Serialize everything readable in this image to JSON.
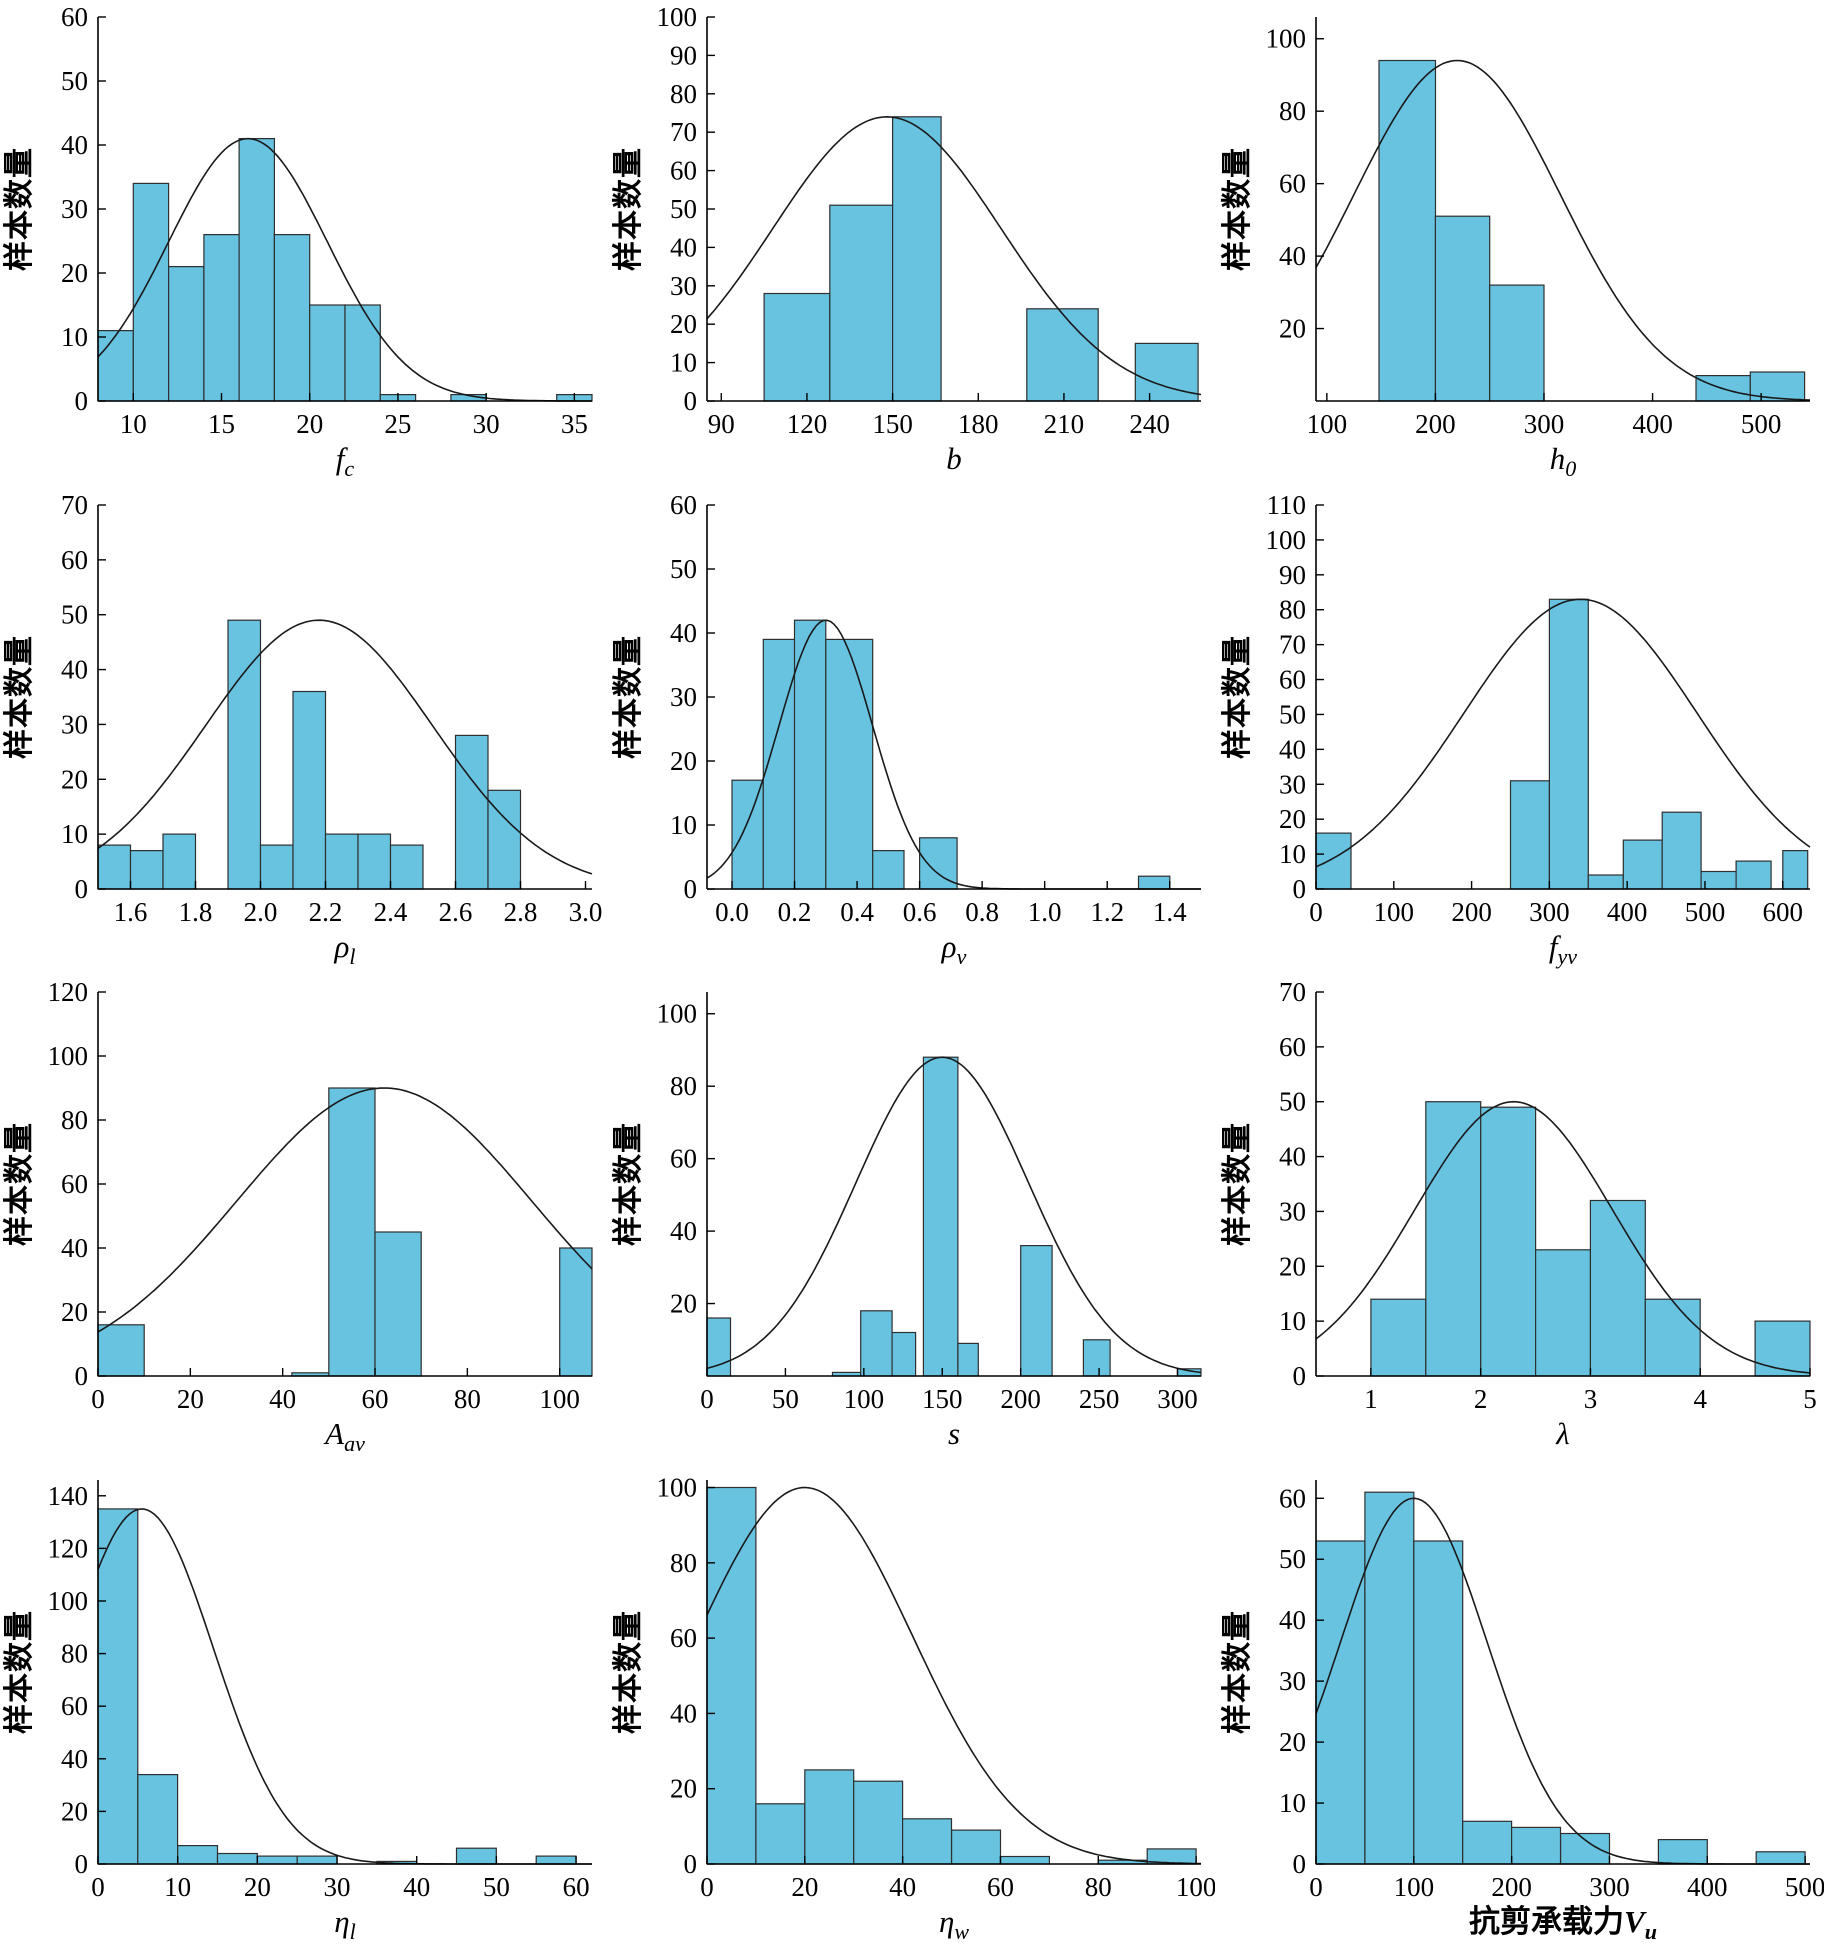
{
  "page": {
    "background": "#ffffff",
    "layout": "3x4-histogram-grid"
  },
  "style": {
    "bar_fill": "#67c3e0",
    "bar_stroke": "#2f2f2f",
    "curve_color": "#1a1a1a",
    "axis_color": "#000000"
  },
  "chart_data": [
    {
      "name": "fc",
      "type": "bar",
      "subtype": "histogram-with-normal-fit",
      "ylabel": "样本数量",
      "xlabel": {
        "prefix": "",
        "base": "f",
        "sub": "c",
        "bold": false
      },
      "xlim": [
        8,
        36
      ],
      "ylim": [
        0,
        60
      ],
      "x_ticks": {
        "values": [
          10,
          15,
          20,
          25,
          30,
          35
        ],
        "labels": [
          "10",
          "15",
          "20",
          "25",
          "30",
          "35"
        ]
      },
      "y_ticks": {
        "values": [
          0,
          10,
          20,
          30,
          40,
          50,
          60
        ],
        "labels": [
          "0",
          "10",
          "20",
          "30",
          "40",
          "50",
          "60"
        ]
      },
      "bars": [
        [
          8,
          10,
          11
        ],
        [
          10,
          12,
          34
        ],
        [
          12,
          14,
          21
        ],
        [
          14,
          16,
          26
        ],
        [
          16,
          18,
          41
        ],
        [
          18,
          20,
          26
        ],
        [
          20,
          22,
          15
        ],
        [
          22,
          24,
          15
        ],
        [
          24,
          26,
          1
        ],
        [
          28,
          30,
          1
        ],
        [
          34,
          36,
          1
        ]
      ],
      "curve": {
        "mean": 16.5,
        "sigma": 4.5,
        "amp": 41
      }
    },
    {
      "name": "b",
      "type": "bar",
      "subtype": "histogram-with-normal-fit",
      "ylabel": "样本数量",
      "xlabel": {
        "prefix": "",
        "base": "b",
        "sub": "",
        "bold": false
      },
      "xlim": [
        85,
        258
      ],
      "ylim": [
        0,
        100
      ],
      "x_ticks": {
        "values": [
          90,
          120,
          150,
          180,
          210,
          240
        ],
        "labels": [
          "90",
          "120",
          "150",
          "180",
          "210",
          "240"
        ]
      },
      "y_ticks": {
        "values": [
          0,
          10,
          20,
          30,
          40,
          50,
          60,
          70,
          80,
          90,
          100
        ],
        "labels": [
          "0",
          "10",
          "20",
          "30",
          "40",
          "50",
          "60",
          "70",
          "80",
          "90",
          "100"
        ]
      },
      "bars": [
        [
          105,
          128,
          28
        ],
        [
          128,
          150,
          51
        ],
        [
          150,
          167,
          74
        ],
        [
          197,
          222,
          24
        ],
        [
          235,
          257,
          15
        ]
      ],
      "curve": {
        "mean": 148,
        "sigma": 40,
        "amp": 74
      }
    },
    {
      "name": "h0",
      "type": "bar",
      "subtype": "histogram-with-normal-fit",
      "ylabel": "样本数量",
      "xlabel": {
        "prefix": "",
        "base": "h",
        "sub": "0",
        "bold": false
      },
      "xlim": [
        90,
        545
      ],
      "ylim": [
        0,
        106
      ],
      "x_ticks": {
        "values": [
          100,
          200,
          300,
          400,
          500
        ],
        "labels": [
          "100",
          "200",
          "300",
          "400",
          "500"
        ]
      },
      "y_ticks": {
        "values": [
          20,
          40,
          60,
          80,
          100
        ],
        "labels": [
          "20",
          "40",
          "60",
          "80",
          "100"
        ]
      },
      "bars": [
        [
          148,
          200,
          94
        ],
        [
          200,
          250,
          51
        ],
        [
          250,
          300,
          32
        ],
        [
          440,
          490,
          7
        ],
        [
          490,
          540,
          8
        ]
      ],
      "curve": {
        "mean": 220,
        "sigma": 95,
        "amp": 94
      }
    },
    {
      "name": "rho-l",
      "type": "bar",
      "subtype": "histogram-with-normal-fit",
      "ylabel": "样本数量",
      "xlabel": {
        "prefix": "",
        "base": "ρ",
        "sub": "l",
        "bold": false
      },
      "xlim": [
        1.5,
        3.02
      ],
      "ylim": [
        0,
        70
      ],
      "x_ticks": {
        "values": [
          1.6,
          1.8,
          2.0,
          2.2,
          2.4,
          2.6,
          2.8,
          3.0
        ],
        "labels": [
          "1.6",
          "1.8",
          "2.0",
          "2.2",
          "2.4",
          "2.6",
          "2.8",
          "3.0"
        ]
      },
      "y_ticks": {
        "values": [
          0,
          10,
          20,
          30,
          40,
          50,
          60,
          70
        ],
        "labels": [
          "0",
          "10",
          "20",
          "30",
          "40",
          "50",
          "60",
          "70"
        ]
      },
      "bars": [
        [
          1.5,
          1.6,
          8
        ],
        [
          1.6,
          1.7,
          7
        ],
        [
          1.7,
          1.8,
          10
        ],
        [
          1.9,
          2.0,
          49
        ],
        [
          2.0,
          2.1,
          8
        ],
        [
          2.1,
          2.2,
          36
        ],
        [
          2.2,
          2.3,
          10
        ],
        [
          2.3,
          2.4,
          10
        ],
        [
          2.4,
          2.5,
          8
        ],
        [
          2.6,
          2.7,
          28
        ],
        [
          2.7,
          2.8,
          18
        ]
      ],
      "curve": {
        "mean": 2.18,
        "sigma": 0.35,
        "amp": 49
      }
    },
    {
      "name": "rho-v",
      "type": "bar",
      "subtype": "histogram-with-normal-fit",
      "ylabel": "样本数量",
      "xlabel": {
        "prefix": "",
        "base": "ρ",
        "sub": "v",
        "bold": false
      },
      "xlim": [
        -0.08,
        1.5
      ],
      "ylim": [
        0,
        60
      ],
      "x_ticks": {
        "values": [
          0.0,
          0.2,
          0.4,
          0.6,
          0.8,
          1.0,
          1.2,
          1.4
        ],
        "labels": [
          "0.0",
          "0.2",
          "0.4",
          "0.6",
          "0.8",
          "1.0",
          "1.2",
          "1.4"
        ]
      },
      "y_ticks": {
        "values": [
          0,
          10,
          20,
          30,
          40,
          50,
          60
        ],
        "labels": [
          "0",
          "10",
          "20",
          "30",
          "40",
          "50",
          "60"
        ]
      },
      "bars": [
        [
          0.0,
          0.1,
          17
        ],
        [
          0.1,
          0.2,
          39
        ],
        [
          0.2,
          0.3,
          42
        ],
        [
          0.3,
          0.45,
          39
        ],
        [
          0.45,
          0.55,
          6
        ],
        [
          0.6,
          0.72,
          8
        ],
        [
          1.3,
          1.4,
          2
        ]
      ],
      "curve": {
        "mean": 0.3,
        "sigma": 0.15,
        "amp": 42
      }
    },
    {
      "name": "fyv",
      "type": "bar",
      "subtype": "histogram-with-normal-fit",
      "ylabel": "样本数量",
      "xlabel": {
        "prefix": "",
        "base": "f",
        "sub": "yv",
        "bold": false
      },
      "xlim": [
        0,
        635
      ],
      "ylim": [
        0,
        110
      ],
      "x_ticks": {
        "values": [
          0,
          100,
          200,
          300,
          400,
          500,
          600
        ],
        "labels": [
          "0",
          "100",
          "200",
          "300",
          "400",
          "500",
          "600"
        ]
      },
      "y_ticks": {
        "values": [
          0,
          10,
          20,
          30,
          40,
          50,
          60,
          70,
          80,
          90,
          100,
          110
        ],
        "labels": [
          "0",
          "10",
          "20",
          "30",
          "40",
          "50",
          "60",
          "70",
          "80",
          "90",
          "100",
          "110"
        ]
      },
      "bars": [
        [
          0,
          45,
          16
        ],
        [
          250,
          300,
          31
        ],
        [
          300,
          350,
          83
        ],
        [
          350,
          395,
          4
        ],
        [
          395,
          445,
          14
        ],
        [
          445,
          495,
          22
        ],
        [
          495,
          540,
          5
        ],
        [
          540,
          585,
          8
        ],
        [
          600,
          632,
          11
        ]
      ],
      "curve": {
        "mean": 340,
        "sigma": 150,
        "amp": 83
      }
    },
    {
      "name": "aav",
      "type": "bar",
      "subtype": "histogram-with-normal-fit",
      "ylabel": "样本数量",
      "xlabel": {
        "prefix": "",
        "base": "A",
        "sub": "av",
        "bold": false
      },
      "xlim": [
        0,
        107
      ],
      "ylim": [
        0,
        120
      ],
      "x_ticks": {
        "values": [
          0,
          20,
          40,
          60,
          80,
          100
        ],
        "labels": [
          "0",
          "20",
          "40",
          "60",
          "80",
          "100"
        ]
      },
      "y_ticks": {
        "values": [
          0,
          20,
          40,
          60,
          80,
          100,
          120
        ],
        "labels": [
          "0",
          "20",
          "40",
          "60",
          "80",
          "100",
          "120"
        ]
      },
      "bars": [
        [
          0,
          10,
          16
        ],
        [
          42,
          50,
          1
        ],
        [
          50,
          60,
          90
        ],
        [
          60,
          70,
          45
        ],
        [
          100,
          107,
          40
        ]
      ],
      "curve": {
        "mean": 62,
        "sigma": 32,
        "amp": 90
      }
    },
    {
      "name": "s",
      "type": "bar",
      "subtype": "histogram-with-normal-fit",
      "ylabel": "样本数量",
      "xlabel": {
        "prefix": "",
        "base": "s",
        "sub": "",
        "bold": false
      },
      "xlim": [
        0,
        315
      ],
      "ylim": [
        0,
        106
      ],
      "x_ticks": {
        "values": [
          0,
          50,
          100,
          150,
          200,
          250,
          300
        ],
        "labels": [
          "0",
          "50",
          "100",
          "150",
          "200",
          "250",
          "300"
        ]
      },
      "y_ticks": {
        "values": [
          20,
          40,
          60,
          80,
          100
        ],
        "labels": [
          "20",
          "40",
          "60",
          "80",
          "100"
        ]
      },
      "bars": [
        [
          0,
          15,
          16
        ],
        [
          80,
          98,
          1
        ],
        [
          98,
          118,
          18
        ],
        [
          118,
          133,
          12
        ],
        [
          138,
          160,
          88
        ],
        [
          160,
          173,
          9
        ],
        [
          200,
          220,
          36
        ],
        [
          240,
          257,
          10
        ],
        [
          300,
          315,
          2
        ]
      ],
      "curve": {
        "mean": 150,
        "sigma": 55,
        "amp": 88
      }
    },
    {
      "name": "lambda",
      "type": "bar",
      "subtype": "histogram-with-normal-fit",
      "ylabel": "样本数量",
      "xlabel": {
        "prefix": "",
        "base": "λ",
        "sub": "",
        "bold": false
      },
      "xlim": [
        0.5,
        5
      ],
      "ylim": [
        0,
        70
      ],
      "x_ticks": {
        "values": [
          1,
          2,
          3,
          4,
          5
        ],
        "labels": [
          "1",
          "2",
          "3",
          "4",
          "5"
        ]
      },
      "y_ticks": {
        "values": [
          0,
          10,
          20,
          30,
          40,
          50,
          60,
          70
        ],
        "labels": [
          "0",
          "10",
          "20",
          "30",
          "40",
          "50",
          "60",
          "70"
        ]
      },
      "bars": [
        [
          1,
          1.5,
          14
        ],
        [
          1.5,
          2,
          50
        ],
        [
          2,
          2.5,
          49
        ],
        [
          2.5,
          3,
          23
        ],
        [
          3,
          3.5,
          32
        ],
        [
          3.5,
          4,
          14
        ],
        [
          4.5,
          5,
          10
        ]
      ],
      "curve": {
        "mean": 2.3,
        "sigma": 0.9,
        "amp": 50
      }
    },
    {
      "name": "eta-l",
      "type": "bar",
      "subtype": "histogram-with-normal-fit",
      "ylabel": "样本数量",
      "xlabel": {
        "prefix": "",
        "base": "η",
        "sub": "l",
        "bold": false
      },
      "xlim": [
        0,
        62
      ],
      "ylim": [
        0,
        146
      ],
      "x_ticks": {
        "values": [
          0,
          10,
          20,
          30,
          40,
          50,
          60
        ],
        "labels": [
          "0",
          "10",
          "20",
          "30",
          "40",
          "50",
          "60"
        ]
      },
      "y_ticks": {
        "values": [
          0,
          20,
          40,
          60,
          80,
          100,
          120,
          140
        ],
        "labels": [
          "0",
          "20",
          "40",
          "60",
          "80",
          "100",
          "120",
          "140"
        ]
      },
      "bars": [
        [
          0,
          5,
          135
        ],
        [
          5,
          10,
          34
        ],
        [
          10,
          15,
          7
        ],
        [
          15,
          20,
          4
        ],
        [
          20,
          25,
          3
        ],
        [
          25,
          30,
          3
        ],
        [
          35,
          40,
          1
        ],
        [
          45,
          50,
          6
        ],
        [
          55,
          60,
          3
        ]
      ],
      "curve": {
        "mean": 5.5,
        "sigma": 9,
        "amp": 135
      }
    },
    {
      "name": "eta-w",
      "type": "bar",
      "subtype": "histogram-with-normal-fit",
      "ylabel": "样本数量",
      "xlabel": {
        "prefix": "",
        "base": "η",
        "sub": "w",
        "bold": false
      },
      "xlim": [
        0,
        101
      ],
      "ylim": [
        0,
        102
      ],
      "x_ticks": {
        "values": [
          0,
          20,
          40,
          60,
          80,
          100
        ],
        "labels": [
          "0",
          "20",
          "40",
          "60",
          "80",
          "100"
        ]
      },
      "y_ticks": {
        "values": [
          0,
          20,
          40,
          60,
          80,
          100
        ],
        "labels": [
          "0",
          "20",
          "40",
          "60",
          "80",
          "100"
        ]
      },
      "bars": [
        [
          0,
          10,
          100
        ],
        [
          10,
          20,
          16
        ],
        [
          20,
          30,
          25
        ],
        [
          30,
          40,
          22
        ],
        [
          40,
          50,
          12
        ],
        [
          50,
          60,
          9
        ],
        [
          60,
          70,
          2
        ],
        [
          80,
          90,
          1
        ],
        [
          90,
          100,
          4
        ]
      ],
      "curve": {
        "mean": 20,
        "sigma": 22,
        "amp": 100
      }
    },
    {
      "name": "vu",
      "type": "bar",
      "subtype": "histogram-with-normal-fit",
      "ylabel": "样本数量",
      "xlabel": {
        "prefix": "抗剪承载力",
        "base": "V",
        "sub": "u",
        "bold": true
      },
      "xlim": [
        0,
        505
      ],
      "ylim": [
        0,
        63
      ],
      "x_ticks": {
        "values": [
          0,
          100,
          200,
          300,
          400,
          500
        ],
        "labels": [
          "0",
          "100",
          "200",
          "300",
          "400",
          "500"
        ]
      },
      "y_ticks": {
        "values": [
          0,
          10,
          20,
          30,
          40,
          50,
          60
        ],
        "labels": [
          "0",
          "10",
          "20",
          "30",
          "40",
          "50",
          "60"
        ]
      },
      "bars": [
        [
          0,
          50,
          53
        ],
        [
          50,
          100,
          61
        ],
        [
          100,
          150,
          53
        ],
        [
          150,
          200,
          7
        ],
        [
          200,
          250,
          6
        ],
        [
          250,
          300,
          5
        ],
        [
          350,
          400,
          4
        ],
        [
          450,
          500,
          2
        ]
      ],
      "curve": {
        "mean": 100,
        "sigma": 75,
        "amp": 60
      }
    }
  ]
}
